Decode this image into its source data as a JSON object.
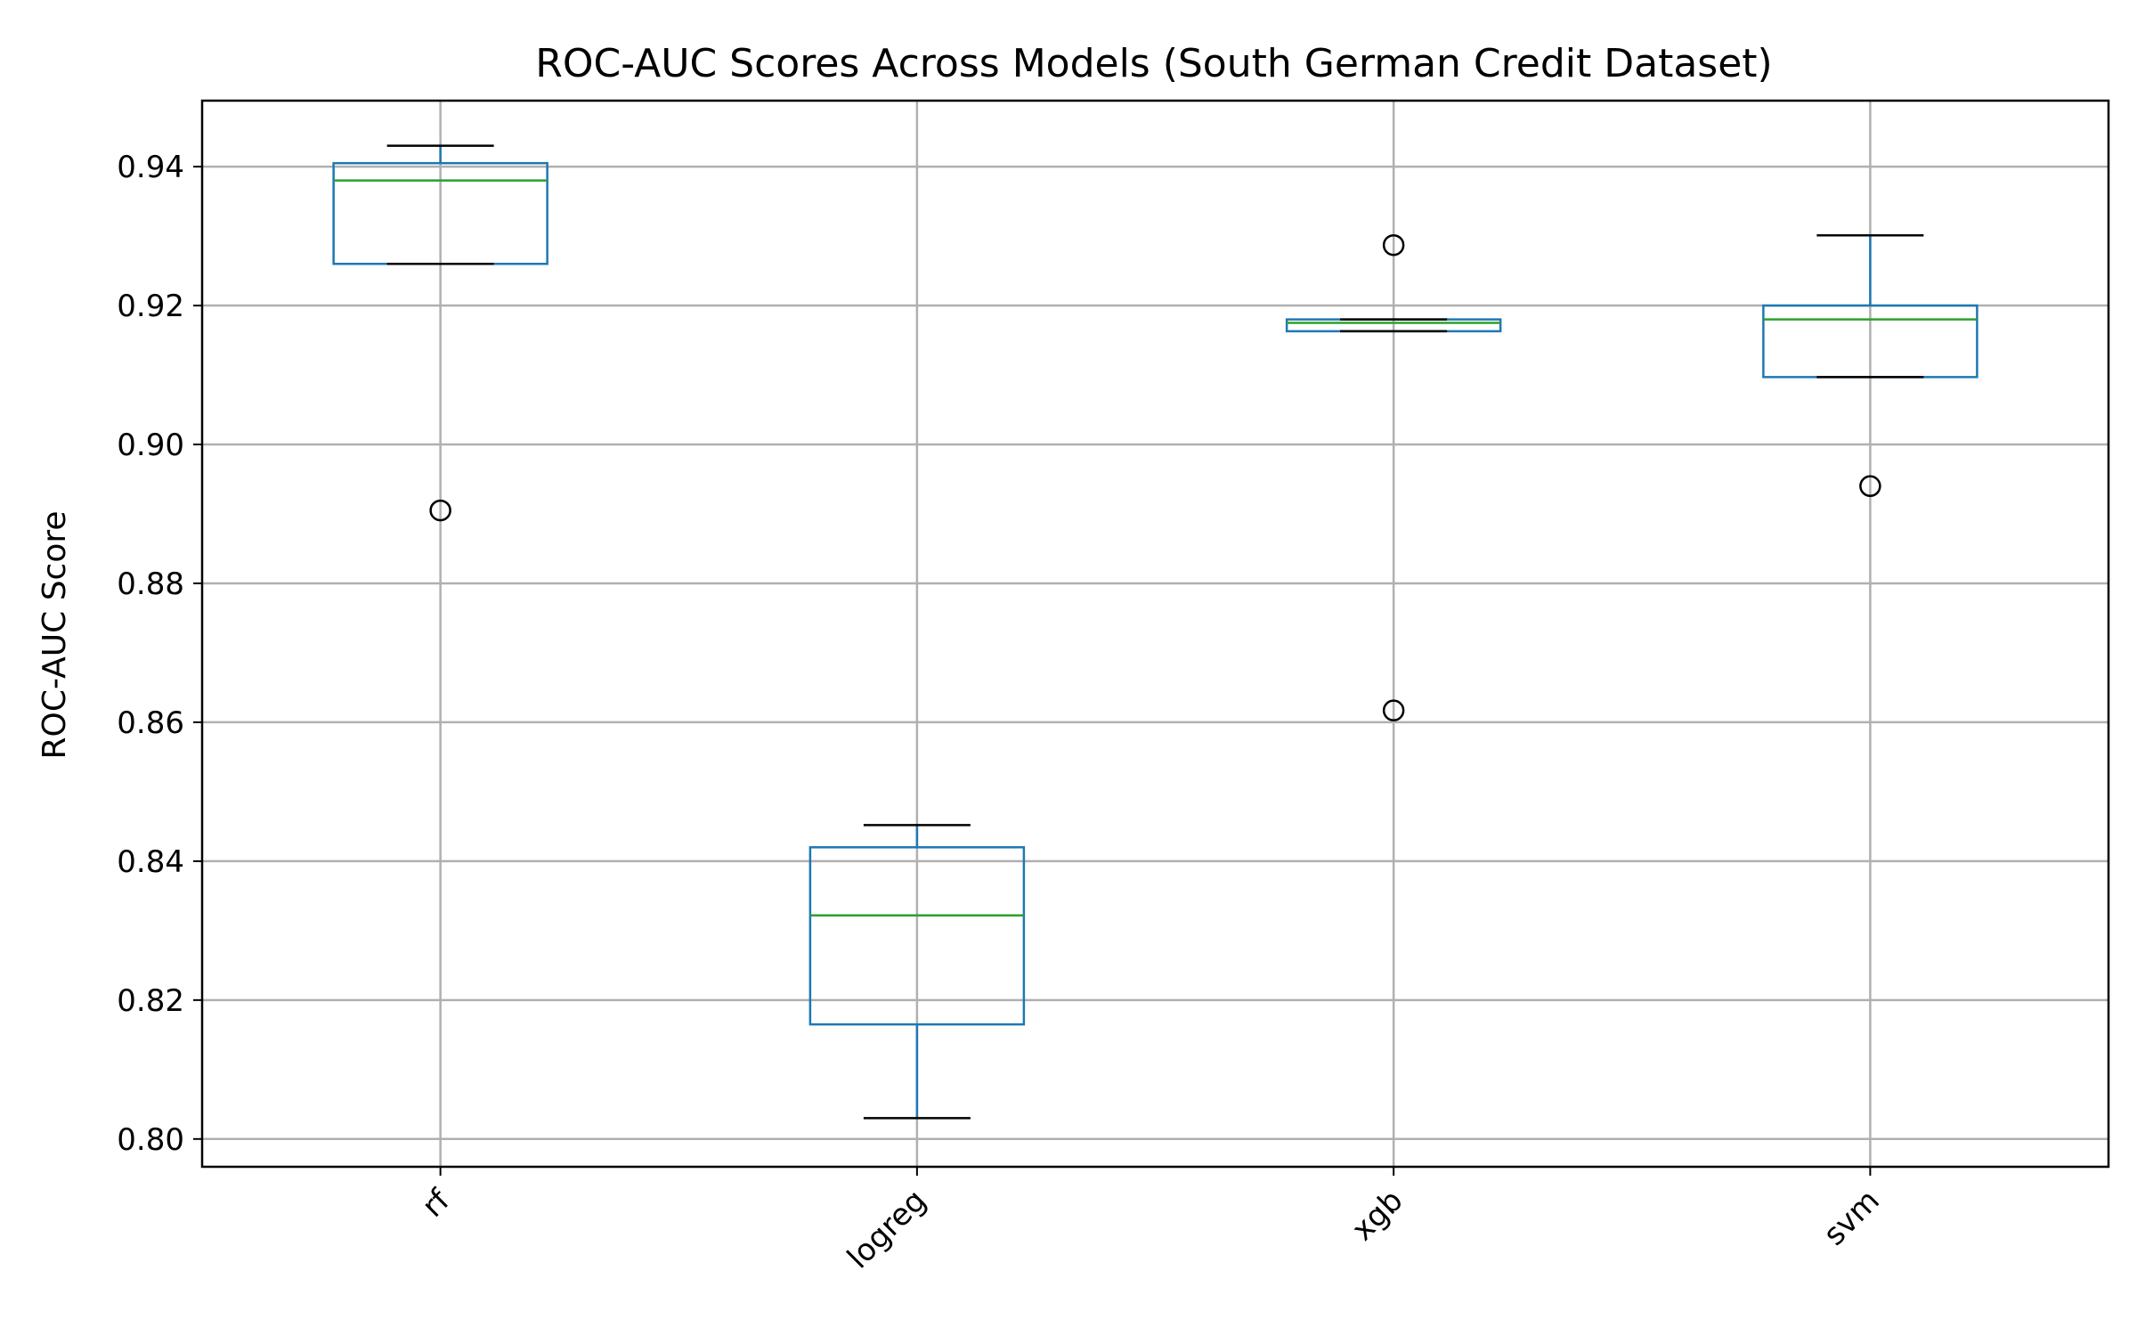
{
  "chart_data": {
    "type": "box",
    "title": "ROC-AUC Scores Across Models (South German Credit Dataset)",
    "xlabel": "",
    "ylabel": "ROC-AUC Score",
    "ylim": [
      0.796,
      0.9495
    ],
    "yticks": [
      "0.80",
      "0.82",
      "0.84",
      "0.86",
      "0.88",
      "0.90",
      "0.92",
      "0.94"
    ],
    "ytick_values": [
      0.8,
      0.82,
      0.84,
      0.86,
      0.88,
      0.9,
      0.92,
      0.94
    ],
    "grid": true,
    "categories": [
      "rf",
      "logreg",
      "xgb",
      "svm"
    ],
    "boxes": [
      {
        "name": "rf",
        "whisker_low": 0.926,
        "q1": 0.926,
        "median": 0.938,
        "q3": 0.9405,
        "whisker_high": 0.943,
        "outliers": [
          0.8905
        ]
      },
      {
        "name": "logreg",
        "whisker_low": 0.803,
        "q1": 0.8165,
        "median": 0.8322,
        "q3": 0.842,
        "whisker_high": 0.8452,
        "outliers": []
      },
      {
        "name": "xgb",
        "whisker_low": 0.9163,
        "q1": 0.9163,
        "median": 0.9175,
        "q3": 0.918,
        "whisker_high": 0.918,
        "outliers": [
          0.9287,
          0.8617
        ]
      },
      {
        "name": "svm",
        "whisker_low": 0.9097,
        "q1": 0.9097,
        "median": 0.918,
        "q3": 0.92,
        "whisker_high": 0.9301,
        "outliers": [
          0.894
        ]
      }
    ],
    "colors": {
      "box": "#1f77b4",
      "median": "#2ca02c",
      "cap": "#000000",
      "outlier": "#000000",
      "grid": "#b0b0b0",
      "axes": "#000000"
    }
  }
}
